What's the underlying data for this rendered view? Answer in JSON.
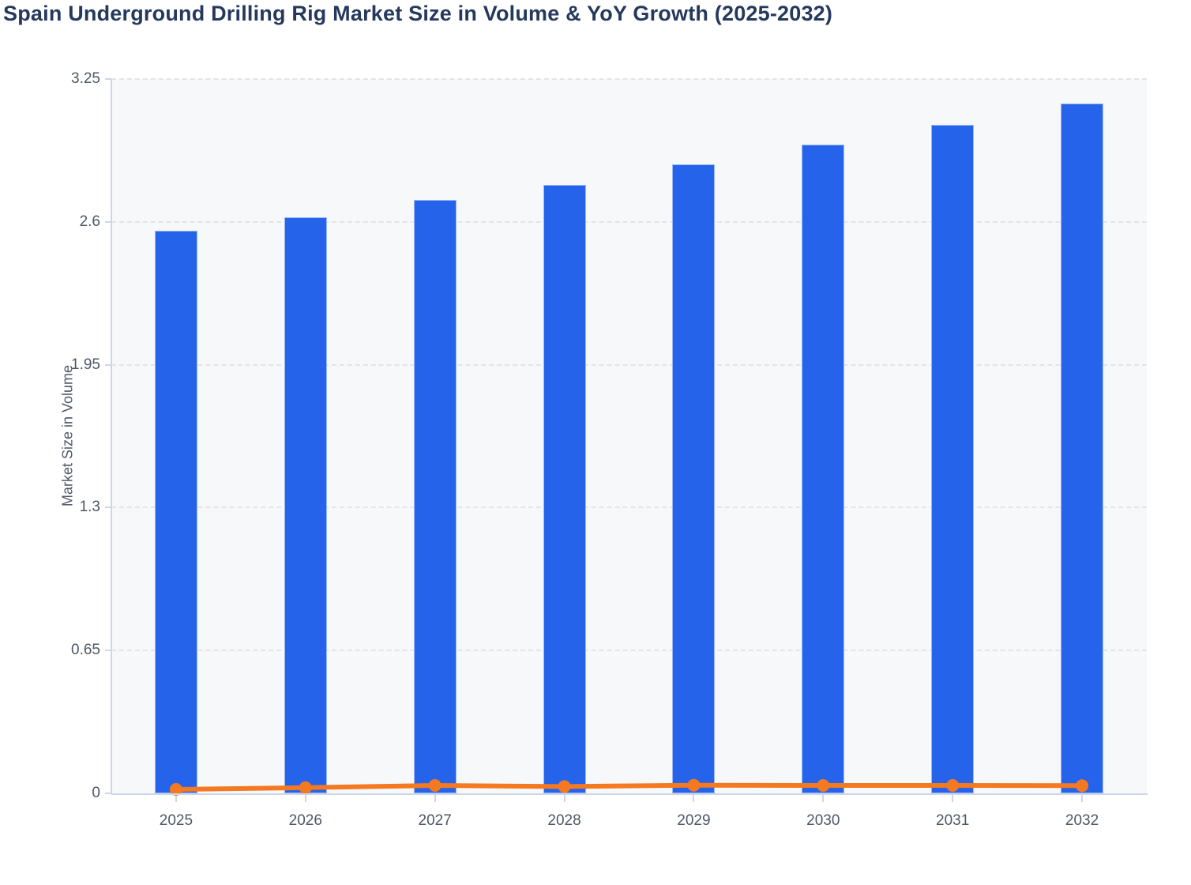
{
  "title": "Spain Underground Drilling Rig Market Size in Volume & YoY Growth (2025-2032)",
  "colors": {
    "bar": "#2563eb",
    "line": "#f47920",
    "axis": "#ccd6eb",
    "grid": "#e3e4e8",
    "label_text": "#4d5766",
    "title_text": "#24395c",
    "plot_background": "#f7f8fa"
  },
  "chart_data": {
    "type": "bar",
    "title": "Spain Underground Drilling Rig Market Size in Volume & YoY Growth (2025-2032)",
    "xlabel": "",
    "ylabel": "Market Size in Volume",
    "categories": [
      "2025",
      "2026",
      "2027",
      "2028",
      "2029",
      "2030",
      "2031",
      "2032"
    ],
    "series": [
      {
        "name": "Market Size in Volume",
        "type": "bar",
        "color": "#2563eb",
        "values": [
          2.56,
          2.62,
          2.7,
          2.77,
          2.86,
          2.95,
          3.04,
          3.14
        ]
      },
      {
        "name": "YoY Growth",
        "type": "line",
        "color": "#f47920",
        "values": [
          0.018,
          0.026,
          0.036,
          0.031,
          0.037,
          0.036,
          0.036,
          0.035
        ]
      }
    ],
    "ylim": [
      0,
      3.25
    ],
    "yticks": [
      0,
      0.65,
      1.3,
      1.95,
      2.6,
      3.25
    ],
    "ytick_labels": [
      "0",
      "0.65",
      "1.3",
      "1.95",
      "2.6",
      "3.25"
    ],
    "grid": "horizontal-dashed",
    "legend_position": "none"
  }
}
